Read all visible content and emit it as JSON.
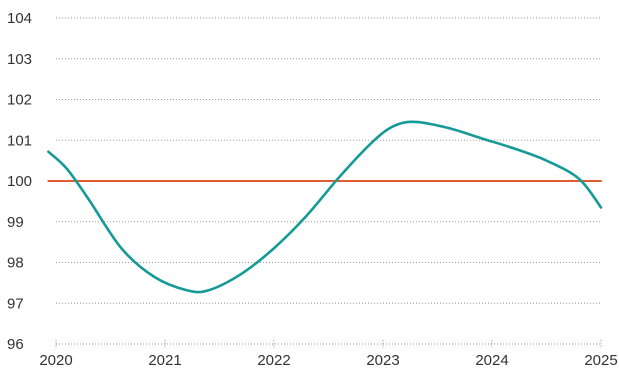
{
  "chart_data": {
    "type": "line",
    "title": "",
    "xlabel": "",
    "ylabel": "",
    "x_ticks": [
      "2020",
      "2021",
      "2022",
      "2023",
      "2024",
      "2025"
    ],
    "y_ticks": [
      "96",
      "97",
      "98",
      "99",
      "100",
      "101",
      "102",
      "103",
      "104"
    ],
    "xlim": [
      2020,
      2025
    ],
    "ylim": [
      96,
      104
    ],
    "grid": true,
    "legend": "none",
    "series": [
      {
        "color": "#159a97",
        "x": [
          2019.93,
          2020.1,
          2020.3,
          2020.6,
          2020.9,
          2021.2,
          2021.4,
          2021.7,
          2022.0,
          2022.3,
          2022.6,
          2022.9,
          2023.1,
          2023.3,
          2023.6,
          2023.9,
          2024.2,
          2024.5,
          2024.8,
          2025.0
        ],
        "y": [
          100.72,
          100.3,
          99.55,
          98.35,
          97.65,
          97.32,
          97.32,
          97.72,
          98.35,
          99.15,
          100.1,
          100.95,
          101.35,
          101.45,
          101.3,
          101.05,
          100.8,
          100.5,
          100.05,
          99.35
        ]
      },
      {
        "color": "#e05c2e",
        "x": [
          2019.93,
          2025.0
        ],
        "y": [
          100,
          100
        ]
      }
    ]
  }
}
